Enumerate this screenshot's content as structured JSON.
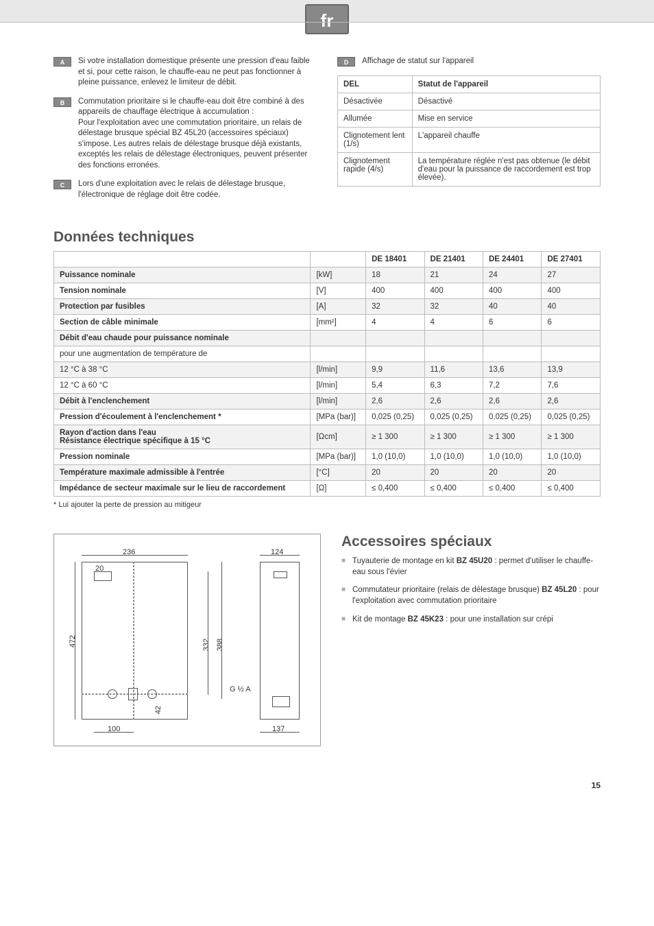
{
  "lang_badge": "fr",
  "notes": {
    "A": "Si votre installation domestique présente une pression d'eau faible et si, pour cette raison, le chauffe-eau ne peut pas fonctionner à pleine puissance, enlevez le limiteur de débit.",
    "B": "Commutation prioritaire si le chauffe-eau doit être combiné à des appareils de chauffage électrique à accumulation :\nPour l'exploitation avec une commutation prioritaire, un relais de délestage brusque spécial BZ 45L20 (accessoires spéciaux) s'impose. Les autres relais de délestage brusque déjà existants, exceptés les relais de délestage électroniques, peuvent présenter des fonctions erronées.",
    "C": "Lors d'une exploitation avec le relais de délestage brusque, l'électronique de réglage doit être codée.",
    "D": "Affichage de statut sur l'appareil"
  },
  "status_table": {
    "headers": [
      "DEL",
      "Statut de l'appareil"
    ],
    "rows": [
      [
        "Désactivée",
        "Désactivé"
      ],
      [
        "Allumée",
        "Mise en service"
      ],
      [
        "Clignotement lent (1/s)",
        "L'appareil chauffe"
      ],
      [
        "Clignotement rapide (4/s)",
        "La température réglée n'est pas obtenue (le débit d'eau pour la puissance de raccordement est trop élevée)."
      ]
    ]
  },
  "tech_heading": "Données techniques",
  "tech_table": {
    "models": [
      "DE 18401",
      "DE 21401",
      "DE 24401",
      "DE 27401"
    ],
    "unit_header": "",
    "rows": [
      {
        "label": "Puissance nominale",
        "unit": "[kW]",
        "vals": [
          "18",
          "21",
          "24",
          "27"
        ],
        "alt": true,
        "bold": true
      },
      {
        "label": "Tension nominale",
        "unit": "[V]",
        "vals": [
          "400",
          "400",
          "400",
          "400"
        ],
        "bold": true
      },
      {
        "label": "Protection par fusibles",
        "unit": "[A]",
        "vals": [
          "32",
          "32",
          "40",
          "40"
        ],
        "alt": true,
        "bold": true
      },
      {
        "label": "Section de câble minimale",
        "unit": "[mm²]",
        "vals": [
          "4",
          "4",
          "6",
          "6"
        ],
        "bold": true
      },
      {
        "label": "Débit d'eau chaude pour puissance nominale",
        "unit": "",
        "vals": [
          "",
          "",
          "",
          ""
        ],
        "alt": true,
        "bold": true
      },
      {
        "label": "pour une augmentation de température de",
        "unit": "",
        "vals": [
          "",
          "",
          "",
          ""
        ],
        "bold": false
      },
      {
        "label": "12 °C à 38 °C",
        "unit": "[l/min]",
        "vals": [
          "9,9",
          "11,6",
          "13,6",
          "13,9"
        ],
        "alt": true,
        "bold": false
      },
      {
        "label": "12 °C à 60 °C",
        "unit": "[l/min]",
        "vals": [
          "5,4",
          "6,3",
          "7,2",
          "7,6"
        ],
        "bold": false
      },
      {
        "label": "Débit à l'enclenchement",
        "unit": "[l/min]",
        "vals": [
          "2,6",
          "2,6",
          "2,6",
          "2,6"
        ],
        "alt": true,
        "bold": true
      },
      {
        "label": "Pression d'écoulement à l'enclenchement *",
        "unit": "[MPa (bar)]",
        "vals": [
          "0,025 (0,25)",
          "0,025 (0,25)",
          "0,025 (0,25)",
          "0,025 (0,25)"
        ],
        "bold": true
      },
      {
        "label": "Rayon d'action dans l'eau\nRésistance électrique spécifique à 15 °C",
        "unit": "[Ωcm]",
        "vals": [
          "≥ 1 300",
          "≥ 1 300",
          "≥ 1 300",
          "≥ 1 300"
        ],
        "alt": true,
        "bold": true
      },
      {
        "label": "Pression nominale",
        "unit": "[MPa (bar)]",
        "vals": [
          "1,0 (10,0)",
          "1,0 (10,0)",
          "1,0 (10,0)",
          "1,0 (10,0)"
        ],
        "bold": true
      },
      {
        "label": "Température maximale admissible à l'entrée",
        "unit": "[°C]",
        "vals": [
          "20",
          "20",
          "20",
          "20"
        ],
        "alt": true,
        "bold": true
      },
      {
        "label": "Impédance de secteur maximale sur le lieu de raccordement",
        "unit": "[Ω]",
        "vals": [
          "≤ 0,400",
          "≤ 0,400",
          "≤ 0,400",
          "≤ 0,400"
        ],
        "bold": true
      }
    ]
  },
  "footnote": "* Lui ajouter la perte de pression au mitigeur",
  "diagram": {
    "dims": {
      "d236": "236",
      "d20": "20",
      "d472": "472",
      "d332": "332",
      "d388": "388",
      "d42": "42",
      "d100": "100",
      "d124": "124",
      "d137": "137",
      "g12a": "G ½ A"
    }
  },
  "accessories_heading": "Accessoires spéciaux",
  "accessories": [
    {
      "text": "Tuyauterie de montage en kit ",
      "bold": "BZ 45U20",
      "after": " : permet d'utiliser le chauffe-eau sous l'évier"
    },
    {
      "text": "Commutateur prioritaire (relais de délestage brusque) ",
      "bold": "BZ 45L20",
      "after": " : pour l'exploitation avec commutation prioritaire"
    },
    {
      "text": "Kit de montage ",
      "bold": "BZ 45K23",
      "after": " : pour une installation sur crépi"
    }
  ],
  "page_number": "15"
}
